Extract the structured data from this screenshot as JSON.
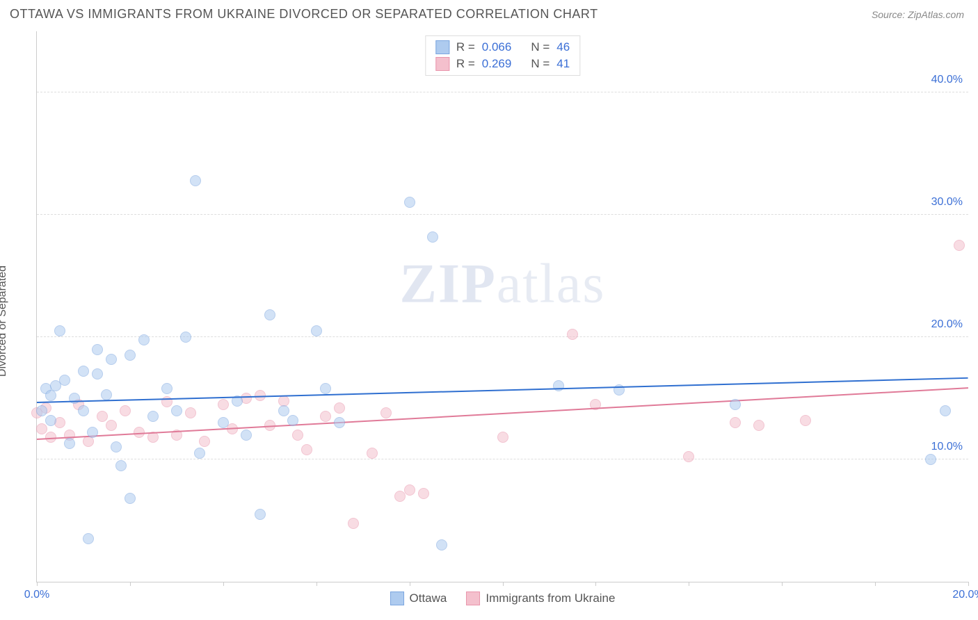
{
  "header": {
    "title": "OTTAWA VS IMMIGRANTS FROM UKRAINE DIVORCED OR SEPARATED CORRELATION CHART",
    "source": "Source: ZipAtlas.com"
  },
  "watermark": {
    "part1": "ZIP",
    "part2": "atlas"
  },
  "chart": {
    "type": "scatter",
    "ylabel": "Divorced or Separated",
    "xlim": [
      0,
      20
    ],
    "ylim": [
      0,
      45
    ],
    "x_ticks": [
      0,
      2,
      4,
      6,
      8,
      10,
      12,
      14,
      16,
      18,
      20
    ],
    "x_tick_labels": {
      "0": "0.0%",
      "20": "20.0%"
    },
    "y_gridlines": [
      10,
      20,
      30,
      40
    ],
    "y_tick_labels": {
      "10": "10.0%",
      "20": "20.0%",
      "30": "30.0%",
      "40": "40.0%"
    },
    "grid_color": "#dddddd",
    "axis_color": "#cccccc",
    "tick_label_color": "#3b6fd6",
    "label_color": "#555555",
    "point_radius": 8,
    "series": {
      "ottawa": {
        "label": "Ottawa",
        "fill": "#aecbef",
        "stroke": "#7ba6e0",
        "fill_opacity": 0.55,
        "R": "0.066",
        "N": "46",
        "trend": {
          "x1": 0,
          "y1": 14.6,
          "x2": 20,
          "y2": 16.6,
          "color": "#2f6fd0",
          "width": 2
        },
        "points": [
          [
            0.1,
            14.0
          ],
          [
            0.2,
            15.8
          ],
          [
            0.3,
            13.2
          ],
          [
            0.3,
            15.2
          ],
          [
            0.4,
            16.0
          ],
          [
            0.5,
            20.5
          ],
          [
            0.6,
            16.5
          ],
          [
            0.7,
            11.3
          ],
          [
            0.8,
            15.0
          ],
          [
            1.0,
            17.2
          ],
          [
            1.0,
            14.0
          ],
          [
            1.1,
            3.5
          ],
          [
            1.2,
            12.2
          ],
          [
            1.3,
            19.0
          ],
          [
            1.3,
            17.0
          ],
          [
            1.5,
            15.3
          ],
          [
            1.6,
            18.2
          ],
          [
            1.7,
            11.0
          ],
          [
            1.8,
            9.5
          ],
          [
            2.0,
            18.5
          ],
          [
            2.0,
            6.8
          ],
          [
            2.3,
            19.8
          ],
          [
            2.5,
            13.5
          ],
          [
            2.8,
            15.8
          ],
          [
            3.0,
            14.0
          ],
          [
            3.2,
            20.0
          ],
          [
            3.4,
            32.8
          ],
          [
            3.5,
            10.5
          ],
          [
            4.0,
            13.0
          ],
          [
            4.3,
            14.8
          ],
          [
            4.5,
            12.0
          ],
          [
            4.8,
            5.5
          ],
          [
            5.0,
            21.8
          ],
          [
            5.3,
            14.0
          ],
          [
            5.5,
            13.2
          ],
          [
            6.0,
            20.5
          ],
          [
            6.2,
            15.8
          ],
          [
            6.5,
            13.0
          ],
          [
            8.0,
            31.0
          ],
          [
            8.5,
            28.2
          ],
          [
            8.7,
            3.0
          ],
          [
            11.2,
            16.0
          ],
          [
            12.5,
            15.7
          ],
          [
            15.0,
            14.5
          ],
          [
            19.2,
            10.0
          ],
          [
            19.5,
            14.0
          ]
        ]
      },
      "ukraine": {
        "label": "Immigrants from Ukraine",
        "fill": "#f4c0cd",
        "stroke": "#e995ac",
        "fill_opacity": 0.55,
        "R": "0.269",
        "N": "41",
        "trend": {
          "x1": 0,
          "y1": 11.6,
          "x2": 20,
          "y2": 15.8,
          "color": "#e07a98",
          "width": 2
        },
        "points": [
          [
            0.0,
            13.8
          ],
          [
            0.1,
            12.5
          ],
          [
            0.2,
            14.2
          ],
          [
            0.3,
            11.8
          ],
          [
            0.5,
            13.0
          ],
          [
            0.7,
            12.0
          ],
          [
            0.9,
            14.5
          ],
          [
            1.1,
            11.5
          ],
          [
            1.4,
            13.5
          ],
          [
            1.6,
            12.8
          ],
          [
            1.9,
            14.0
          ],
          [
            2.2,
            12.2
          ],
          [
            2.5,
            11.8
          ],
          [
            2.8,
            14.7
          ],
          [
            3.0,
            12.0
          ],
          [
            3.3,
            13.8
          ],
          [
            3.6,
            11.5
          ],
          [
            4.0,
            14.5
          ],
          [
            4.2,
            12.5
          ],
          [
            4.5,
            15.0
          ],
          [
            4.8,
            15.2
          ],
          [
            5.0,
            12.8
          ],
          [
            5.3,
            14.8
          ],
          [
            5.6,
            12.0
          ],
          [
            5.8,
            10.8
          ],
          [
            6.2,
            13.5
          ],
          [
            6.5,
            14.2
          ],
          [
            6.8,
            4.8
          ],
          [
            7.2,
            10.5
          ],
          [
            7.5,
            13.8
          ],
          [
            7.8,
            7.0
          ],
          [
            8.0,
            7.5
          ],
          [
            8.3,
            7.2
          ],
          [
            10.0,
            11.8
          ],
          [
            11.5,
            20.2
          ],
          [
            12.0,
            14.5
          ],
          [
            14.0,
            10.2
          ],
          [
            15.0,
            13.0
          ],
          [
            15.5,
            12.8
          ],
          [
            16.5,
            13.2
          ],
          [
            19.8,
            27.5
          ]
        ]
      }
    },
    "legend_top": {
      "r_label": "R =",
      "n_label": "N ="
    }
  }
}
